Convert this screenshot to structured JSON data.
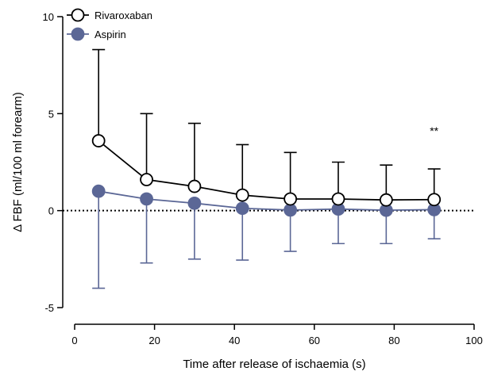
{
  "chart_data": {
    "type": "line",
    "xlabel": "Time after release of ischaemia (s)",
    "ylabel": "Δ FBF (ml/100 ml forearm)",
    "xlim": [
      0,
      100
    ],
    "ylim": [
      -5,
      10
    ],
    "xticks": [
      0,
      20,
      40,
      60,
      80,
      100
    ],
    "yticks": [
      -5,
      0,
      5,
      10
    ],
    "x": [
      6,
      18,
      30,
      42,
      54,
      66,
      78,
      90
    ],
    "reference_line_y": 0,
    "legend_position": "top-left",
    "series": [
      {
        "name": "Rivaroxaban",
        "marker": "open-circle",
        "color": "#000000",
        "fill": "#ffffff",
        "values": [
          3.6,
          1.6,
          1.25,
          0.8,
          0.6,
          0.6,
          0.55,
          0.57
        ],
        "error_upper": [
          8.3,
          5.0,
          4.5,
          3.4,
          3.0,
          2.5,
          2.35,
          2.15
        ],
        "error_direction": "up"
      },
      {
        "name": "Aspirin",
        "marker": "filled-circle",
        "color": "#5b6796",
        "fill": "#5b6796",
        "values": [
          1.0,
          0.6,
          0.38,
          0.12,
          0.03,
          0.08,
          0.02,
          0.05
        ],
        "error_lower": [
          -4.0,
          -2.7,
          -2.5,
          -2.55,
          -2.1,
          -1.7,
          -1.7,
          -1.45
        ],
        "error_direction": "down"
      }
    ],
    "annotations": [
      {
        "text": "**",
        "x": 90,
        "y": 3.9
      }
    ]
  }
}
